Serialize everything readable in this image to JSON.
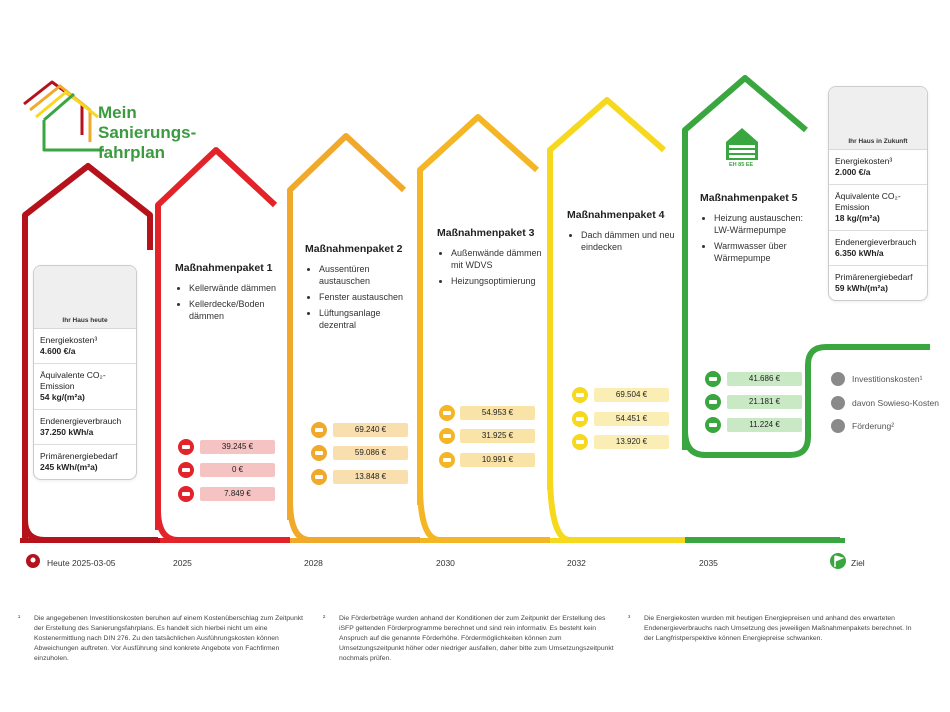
{
  "logo": {
    "line1": "Mein",
    "line2": "Sanierungs-",
    "line3": "fahrplan"
  },
  "colors": {
    "red_dark": "#b5121b",
    "red": "#e2232a",
    "orange": "#f0a92a",
    "yellow_orange": "#f4b624",
    "yellow": "#f6d91f",
    "green": "#3aa63f",
    "grey": "#8a8a8a"
  },
  "today_card": {
    "caption": "Ihr Haus heute",
    "rows": [
      {
        "label": "Energiekosten³",
        "value": "4.600 €/a"
      },
      {
        "label": "Äquivalente CO₂-Emission",
        "value": "54 kg/(m²a)"
      },
      {
        "label": "Endenergieverbrauch",
        "value": "37.250 kWh/a"
      },
      {
        "label": "Primärenergiebedarf",
        "value": "245 kWh/(m²a)"
      }
    ]
  },
  "future_card": {
    "caption": "Ihr Haus in Zukunft",
    "rows": [
      {
        "label": "Energiekosten³",
        "value": "2.000 €/a"
      },
      {
        "label": "Äquivalente CO₂-Emission",
        "value": "18 kg/(m²a)"
      },
      {
        "label": "Endenergieverbrauch",
        "value": "6.350 kWh/a"
      },
      {
        "label": "Primärenergiebedarf",
        "value": "59 kWh/(m²a)"
      }
    ]
  },
  "packages": [
    {
      "title": "Maßnahmenpaket 1",
      "items": [
        "Kellerwände dämmen",
        "Kellerdecke/Boden dämmen"
      ],
      "costs": [
        "39.245 €",
        "0 €",
        "7.849 €"
      ],
      "year": "2025"
    },
    {
      "title": "Maßnahmenpaket 2",
      "items": [
        "Aussentüren austauschen",
        "Fenster austauschen",
        "Lüftungsanlage dezentral"
      ],
      "costs": [
        "69.240 €",
        "59.086 €",
        "13.848 €"
      ],
      "year": "2028"
    },
    {
      "title": "Maßnahmenpaket 3",
      "items": [
        "Außenwände dämmen mit WDVS",
        "Heizungsoptimierung"
      ],
      "costs": [
        "54.953 €",
        "31.925 €",
        "10.991 €"
      ],
      "year": "2030"
    },
    {
      "title": "Maßnahmenpaket 4",
      "items": [
        "Dach dämmen und neu eindecken"
      ],
      "costs": [
        "69.504 €",
        "54.451 €",
        "13.920 €"
      ],
      "year": "2032"
    },
    {
      "title": "Maßnahmenpaket 5",
      "items": [
        "Heizung austauschen: LW-Wärmepumpe",
        "Warmwasser über Wärmepumpe"
      ],
      "costs": [
        "41.686 €",
        "21.181 €",
        "11.224 €"
      ],
      "year": "2035",
      "badge": "EH 85 EE"
    }
  ],
  "timeline": {
    "start": "Heute 2025-03-05",
    "end": "Ziel"
  },
  "legend": [
    "Investitionskosten¹",
    "davon Sowieso-Kosten",
    "Förderung²"
  ],
  "footnotes": [
    {
      "num": "¹",
      "text": "Die angegebenen Investitionskosten beruhen auf einem Kostenüberschlag zum Zeitpunkt der Erstellung des Sanierungsfahrplans. Es handelt sich hierbei nicht um eine Kostenermittlung nach DIN 276. Zu den tatsächlichen Ausführungskosten können Abweichungen auftreten. Vor Ausführung sind konkrete Angebote von Fachfirmen einzuholen."
    },
    {
      "num": "²",
      "text": "Die Förderbeträge wurden anhand der Konditionen der zum Zeitpunkt der Erstellung des iSFP geltenden Förderprogramme berechnet und sind rein informativ. Es besteht kein Anspruch auf die genannte Förderhöhe. Fördermöglichkeiten können zum Umsetzungszeitpunkt höher oder niedriger ausfallen, daher bitte zum Umsetzungszeitpunkt nochmals prüfen."
    },
    {
      "num": "³",
      "text": "Die Energiekosten wurden mit heutigen Energiepreisen und anhand des erwarteten Endenergieverbrauchs nach Umsetzung des jeweiligen Maßnahmenpakets berechnet. In der Langfristperspektive können Energiepreise schwanken."
    }
  ]
}
